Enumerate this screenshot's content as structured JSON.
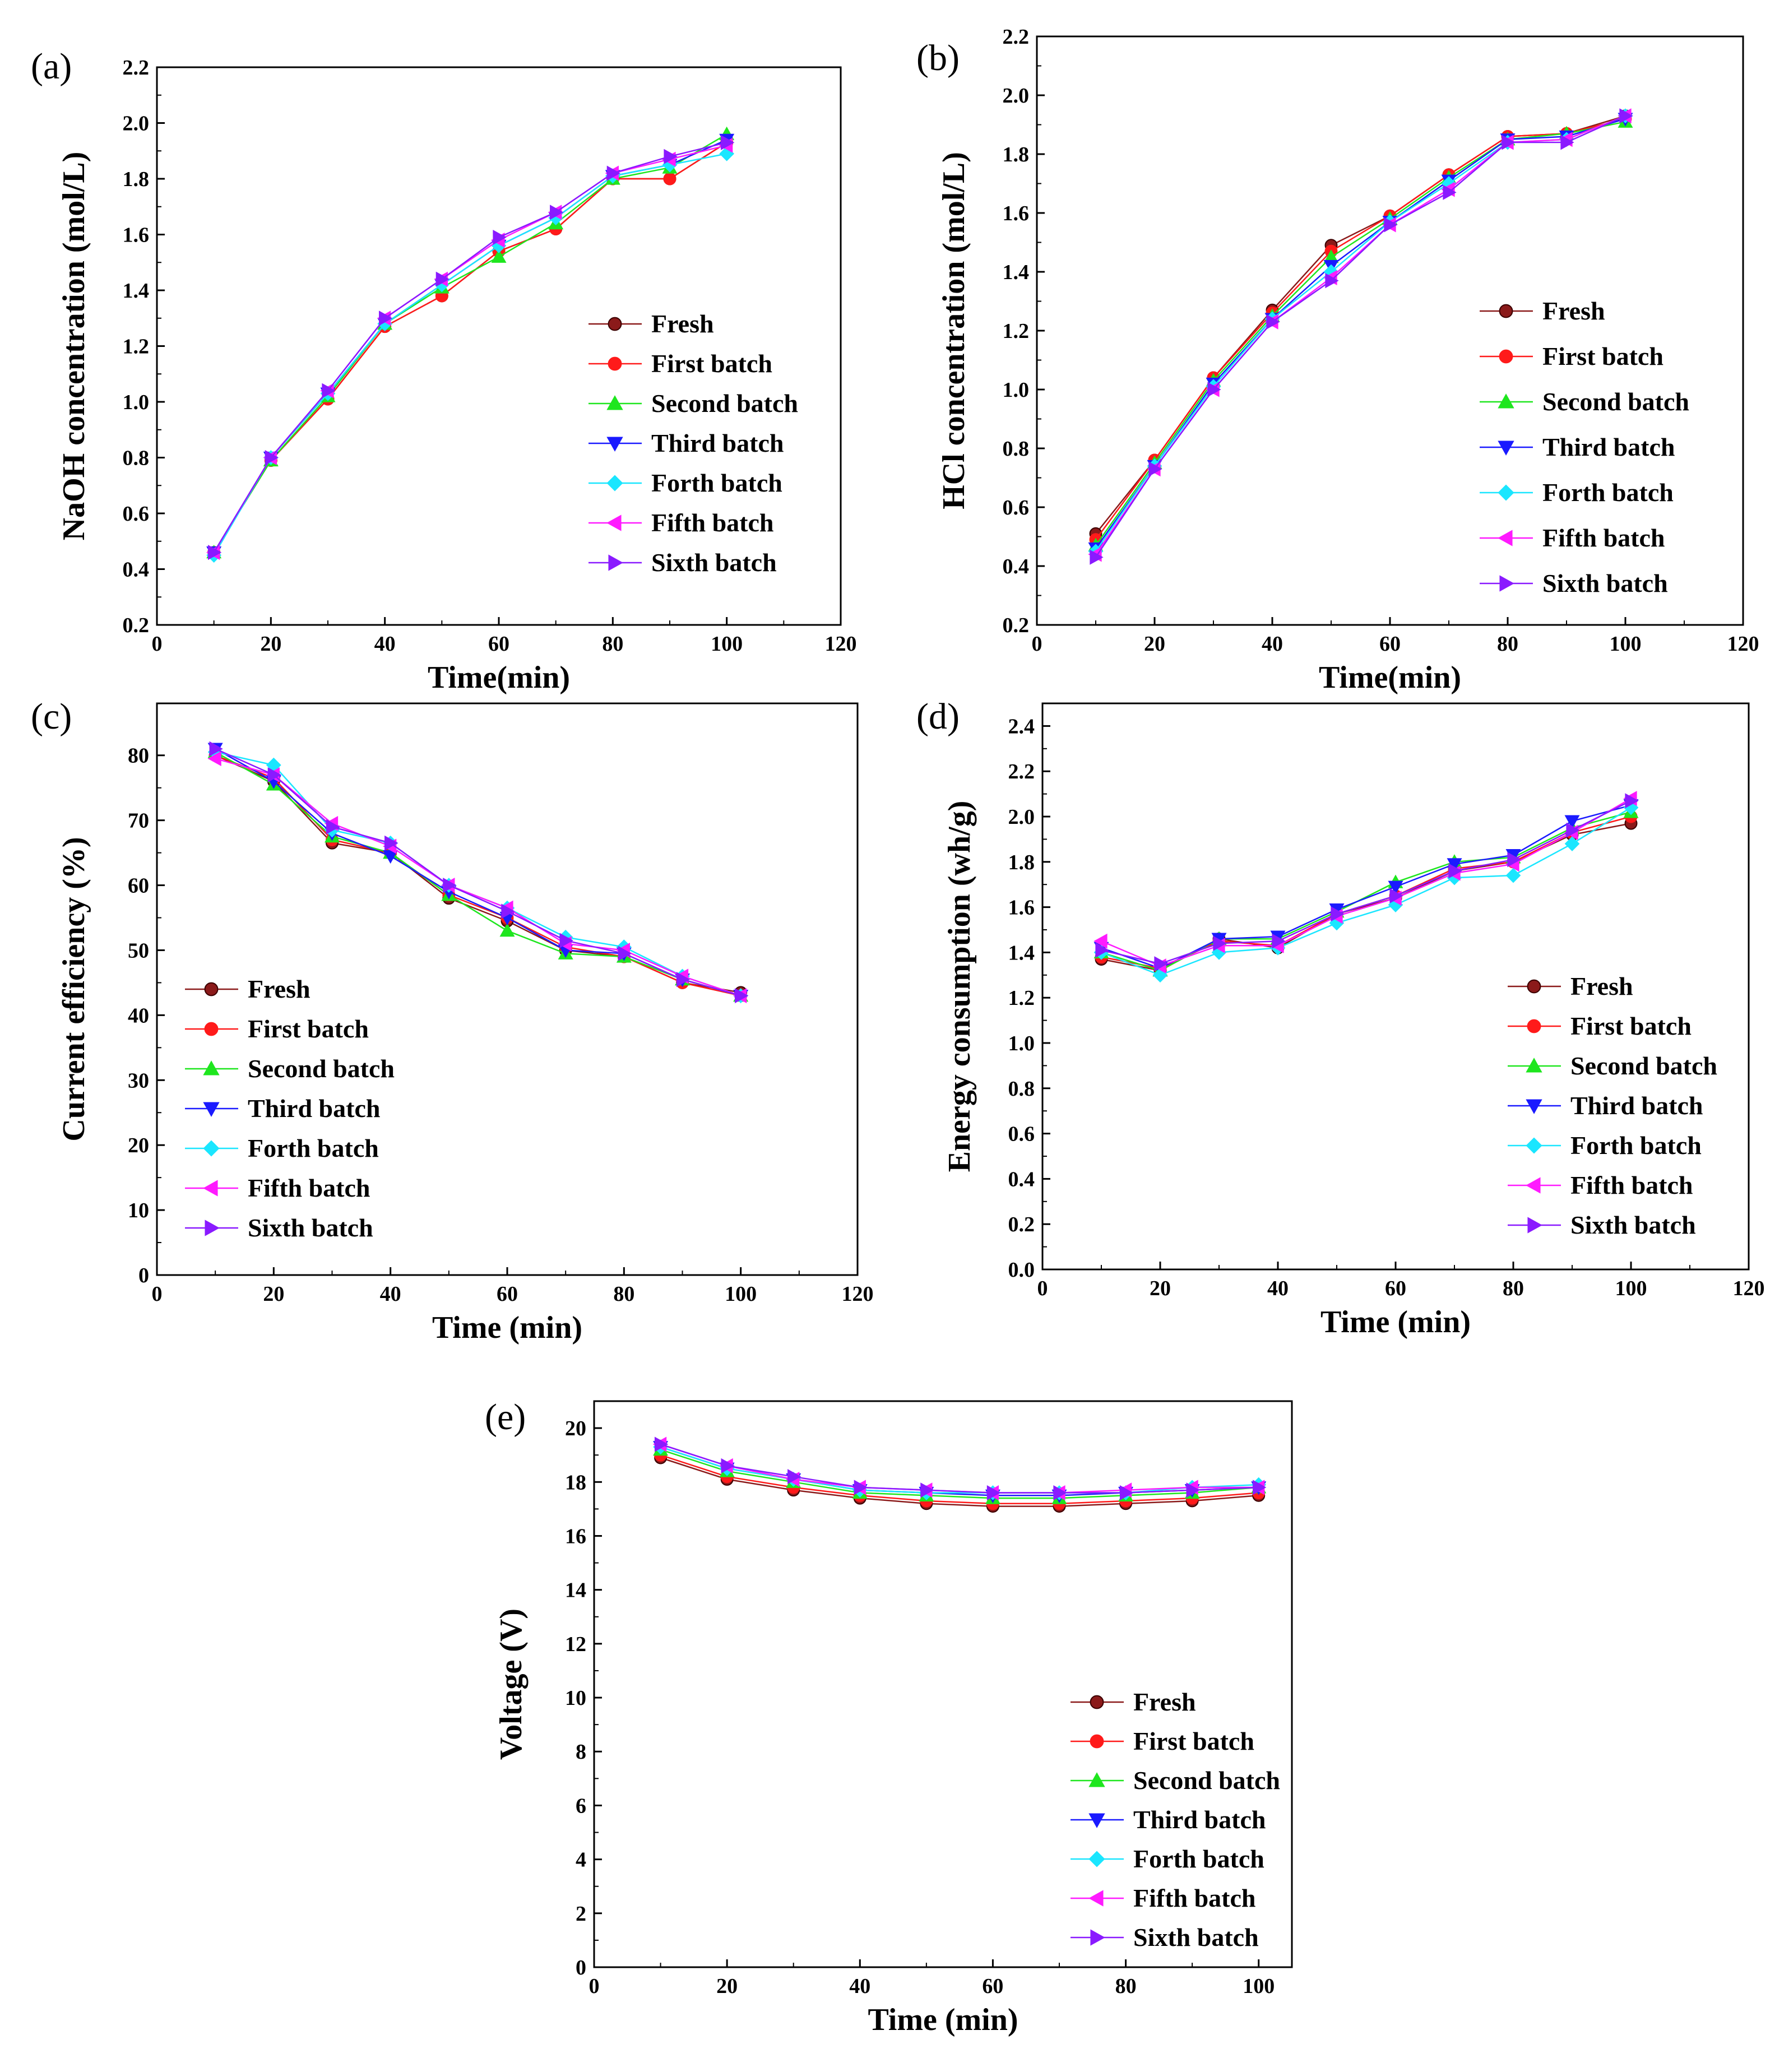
{
  "figure": {
    "panels": [
      "(a)",
      "(b)",
      "(c)",
      "(d)",
      "(e)"
    ]
  },
  "series_styles": [
    {
      "name": "Fresh",
      "color": "#8b1a1a",
      "marker": "circle-dot"
    },
    {
      "name": "First batch",
      "color": "#ff1a1a",
      "marker": "circle"
    },
    {
      "name": "Second batch",
      "color": "#1ee61e",
      "marker": "triangle-up"
    },
    {
      "name": "Third batch",
      "color": "#1a1aff",
      "marker": "triangle-down"
    },
    {
      "name": "Forth batch",
      "color": "#1ae6ff",
      "marker": "diamond"
    },
    {
      "name": "Fifth batch",
      "color": "#ff1aff",
      "marker": "triangle-left"
    },
    {
      "name": "Sixth batch",
      "color": "#8a1aff",
      "marker": "triangle-right"
    }
  ],
  "chart_data": [
    {
      "id": "a",
      "panel_label": "(a)",
      "type": "line",
      "xlabel": "Time(min)",
      "ylabel": "NaOH concentration (mol/L)",
      "xlim": [
        0,
        120
      ],
      "ylim": [
        0.2,
        2.2
      ],
      "xticks": [
        "0",
        "20",
        "40",
        "60",
        "80",
        "100",
        "120"
      ],
      "yticks": [
        "0.2",
        "0.4",
        "0.6",
        "0.8",
        "1.0",
        "1.2",
        "1.4",
        "1.6",
        "1.8",
        "2.0",
        "2.2"
      ],
      "legend": "right-center",
      "x": [
        10,
        20,
        30,
        40,
        50,
        60,
        70,
        80,
        90,
        100
      ],
      "series": [
        {
          "name": "Fresh",
          "values": [
            0.46,
            0.79,
            1.01,
            1.27,
            1.38,
            1.54,
            1.62,
            1.8,
            1.8,
            1.93
          ]
        },
        {
          "name": "First batch",
          "values": [
            0.46,
            0.79,
            1.01,
            1.27,
            1.38,
            1.54,
            1.62,
            1.8,
            1.8,
            1.93
          ]
        },
        {
          "name": "Second batch",
          "values": [
            0.46,
            0.79,
            1.02,
            1.28,
            1.41,
            1.52,
            1.64,
            1.8,
            1.84,
            1.96
          ]
        },
        {
          "name": "Third batch",
          "values": [
            0.46,
            0.8,
            1.03,
            1.28,
            1.42,
            1.56,
            1.66,
            1.81,
            1.85,
            1.94
          ]
        },
        {
          "name": "Forth batch",
          "values": [
            0.45,
            0.8,
            1.03,
            1.28,
            1.42,
            1.56,
            1.66,
            1.81,
            1.85,
            1.89
          ]
        },
        {
          "name": "Fifth batch",
          "values": [
            0.46,
            0.8,
            1.04,
            1.3,
            1.44,
            1.58,
            1.68,
            1.82,
            1.87,
            1.92
          ]
        },
        {
          "name": "Sixth batch",
          "values": [
            0.46,
            0.8,
            1.04,
            1.3,
            1.44,
            1.59,
            1.68,
            1.82,
            1.88,
            1.93
          ]
        }
      ]
    },
    {
      "id": "b",
      "panel_label": "(b)",
      "type": "line",
      "xlabel": "Time(min)",
      "ylabel": "HCl concentration (mol/L)",
      "xlim": [
        0,
        120
      ],
      "ylim": [
        0.2,
        2.2
      ],
      "xticks": [
        "0",
        "20",
        "40",
        "60",
        "80",
        "100",
        "120"
      ],
      "yticks": [
        "0.2",
        "0.4",
        "0.6",
        "0.8",
        "1.0",
        "1.2",
        "1.4",
        "1.6",
        "1.8",
        "2.0",
        "2.2"
      ],
      "legend": "right-center",
      "x": [
        10,
        20,
        30,
        40,
        50,
        60,
        70,
        80,
        90,
        100
      ],
      "series": [
        {
          "name": "Fresh",
          "values": [
            0.51,
            0.76,
            1.04,
            1.27,
            1.49,
            1.59,
            1.73,
            1.86,
            1.87,
            1.93
          ]
        },
        {
          "name": "First batch",
          "values": [
            0.49,
            0.76,
            1.04,
            1.26,
            1.47,
            1.59,
            1.73,
            1.86,
            1.87,
            1.92
          ]
        },
        {
          "name": "Second batch",
          "values": [
            0.47,
            0.75,
            1.03,
            1.25,
            1.45,
            1.58,
            1.72,
            1.85,
            1.87,
            1.91
          ]
        },
        {
          "name": "Third batch",
          "values": [
            0.46,
            0.74,
            1.02,
            1.24,
            1.42,
            1.57,
            1.71,
            1.85,
            1.86,
            1.92
          ]
        },
        {
          "name": "Forth batch",
          "values": [
            0.45,
            0.74,
            1.01,
            1.24,
            1.4,
            1.57,
            1.7,
            1.84,
            1.85,
            1.93
          ]
        },
        {
          "name": "Fifth batch",
          "values": [
            0.44,
            0.73,
            1.0,
            1.23,
            1.38,
            1.56,
            1.68,
            1.84,
            1.85,
            1.93
          ]
        },
        {
          "name": "Sixth batch",
          "values": [
            0.43,
            0.73,
            1.0,
            1.23,
            1.37,
            1.56,
            1.67,
            1.84,
            1.84,
            1.93
          ]
        }
      ]
    },
    {
      "id": "c",
      "panel_label": "(c)",
      "type": "line",
      "xlabel": "Time (min)",
      "ylabel": "Current efficiency (%)",
      "xlim": [
        0,
        120
      ],
      "ylim": [
        0,
        88
      ],
      "xticks": [
        "0",
        "20",
        "40",
        "60",
        "80",
        "100",
        "120"
      ],
      "yticks": [
        "0",
        "10",
        "20",
        "30",
        "40",
        "50",
        "60",
        "70",
        "80"
      ],
      "legend": "left-bottom",
      "x": [
        10,
        20,
        30,
        40,
        50,
        60,
        70,
        80,
        90,
        100
      ],
      "series": [
        {
          "name": "Fresh",
          "values": [
            80.0,
            76.0,
            66.5,
            65.0,
            58.0,
            54.5,
            50.0,
            49.0,
            45.0,
            43.5
          ]
        },
        {
          "name": "First batch",
          "values": [
            80.0,
            76.5,
            67.0,
            65.0,
            58.5,
            55.0,
            50.5,
            49.0,
            45.0,
            43.0
          ]
        },
        {
          "name": "Second batch",
          "values": [
            80.5,
            75.5,
            67.5,
            65.0,
            58.5,
            53.0,
            49.5,
            49.0,
            45.5,
            43.0
          ]
        },
        {
          "name": "Third batch",
          "values": [
            81.0,
            76.0,
            68.0,
            64.5,
            59.0,
            55.0,
            50.0,
            49.5,
            45.5,
            43.0
          ]
        },
        {
          "name": "Forth batch",
          "values": [
            80.5,
            78.5,
            68.5,
            66.5,
            60.0,
            56.5,
            52.0,
            50.5,
            46.0,
            43.0
          ]
        },
        {
          "name": "Fifth batch",
          "values": [
            79.5,
            77.0,
            69.5,
            66.0,
            60.0,
            56.5,
            51.0,
            50.0,
            46.0,
            43.0
          ]
        },
        {
          "name": "Sixth batch",
          "values": [
            81.0,
            77.0,
            69.0,
            66.5,
            60.0,
            56.0,
            51.5,
            49.5,
            45.5,
            43.0
          ]
        }
      ]
    },
    {
      "id": "d",
      "panel_label": "(d)",
      "type": "line",
      "xlabel": "Time (min)",
      "ylabel": "Energy consumption (wh/g)",
      "xlim": [
        0,
        120
      ],
      "ylim": [
        0,
        2.5
      ],
      "xticks": [
        "0",
        "20",
        "40",
        "60",
        "80",
        "100",
        "120"
      ],
      "yticks": [
        "0.0",
        "0.2",
        "0.4",
        "0.6",
        "0.8",
        "1.0",
        "1.2",
        "1.4",
        "1.6",
        "1.8",
        "2.0",
        "2.2",
        "2.4"
      ],
      "legend": "right-center",
      "x": [
        10,
        20,
        30,
        40,
        50,
        60,
        70,
        80,
        90,
        100
      ],
      "series": [
        {
          "name": "Fresh",
          "values": [
            1.37,
            1.32,
            1.46,
            1.42,
            1.57,
            1.64,
            1.76,
            1.8,
            1.92,
            1.97
          ]
        },
        {
          "name": "First batch",
          "values": [
            1.38,
            1.33,
            1.45,
            1.43,
            1.57,
            1.65,
            1.77,
            1.8,
            1.93,
            2.0
          ]
        },
        {
          "name": "Second batch",
          "values": [
            1.4,
            1.32,
            1.46,
            1.46,
            1.58,
            1.71,
            1.8,
            1.82,
            1.95,
            2.02
          ]
        },
        {
          "name": "Third batch",
          "values": [
            1.42,
            1.33,
            1.46,
            1.47,
            1.59,
            1.69,
            1.79,
            1.83,
            1.98,
            2.05
          ]
        },
        {
          "name": "Forth batch",
          "values": [
            1.4,
            1.3,
            1.4,
            1.42,
            1.53,
            1.61,
            1.73,
            1.74,
            1.88,
            2.04
          ]
        },
        {
          "name": "Fifth batch",
          "values": [
            1.45,
            1.34,
            1.43,
            1.43,
            1.56,
            1.64,
            1.75,
            1.79,
            1.93,
            2.08
          ]
        },
        {
          "name": "Sixth batch",
          "values": [
            1.41,
            1.35,
            1.44,
            1.45,
            1.57,
            1.65,
            1.76,
            1.81,
            1.94,
            2.07
          ]
        }
      ]
    },
    {
      "id": "e",
      "panel_label": "(e)",
      "type": "line",
      "xlabel": "Time (min)",
      "ylabel": "Voltage (V)",
      "xlim": [
        0,
        105
      ],
      "ylim": [
        0,
        21
      ],
      "xticks": [
        "0",
        "20",
        "40",
        "60",
        "80",
        "100"
      ],
      "yticks": [
        "0",
        "2",
        "4",
        "6",
        "8",
        "10",
        "12",
        "14",
        "16",
        "18",
        "20"
      ],
      "legend": "right-center",
      "x": [
        10,
        20,
        30,
        40,
        50,
        60,
        70,
        80,
        90,
        100
      ],
      "series": [
        {
          "name": "Fresh",
          "values": [
            18.9,
            18.1,
            17.7,
            17.4,
            17.2,
            17.1,
            17.1,
            17.2,
            17.3,
            17.5
          ]
        },
        {
          "name": "First batch",
          "values": [
            19.0,
            18.2,
            17.8,
            17.5,
            17.3,
            17.2,
            17.2,
            17.3,
            17.4,
            17.6
          ]
        },
        {
          "name": "Second batch",
          "values": [
            19.2,
            18.4,
            18.0,
            17.6,
            17.5,
            17.4,
            17.4,
            17.5,
            17.6,
            17.8
          ]
        },
        {
          "name": "Third batch",
          "values": [
            19.3,
            18.5,
            18.1,
            17.7,
            17.6,
            17.5,
            17.5,
            17.6,
            17.7,
            17.8
          ]
        },
        {
          "name": "Forth batch",
          "values": [
            19.3,
            18.5,
            18.1,
            17.7,
            17.6,
            17.6,
            17.6,
            17.6,
            17.8,
            17.9
          ]
        },
        {
          "name": "Fifth batch",
          "values": [
            19.4,
            18.6,
            18.1,
            17.8,
            17.7,
            17.6,
            17.6,
            17.7,
            17.8,
            17.8
          ]
        },
        {
          "name": "Sixth batch",
          "values": [
            19.4,
            18.6,
            18.2,
            17.8,
            17.7,
            17.6,
            17.6,
            17.6,
            17.7,
            17.8
          ]
        }
      ]
    }
  ]
}
